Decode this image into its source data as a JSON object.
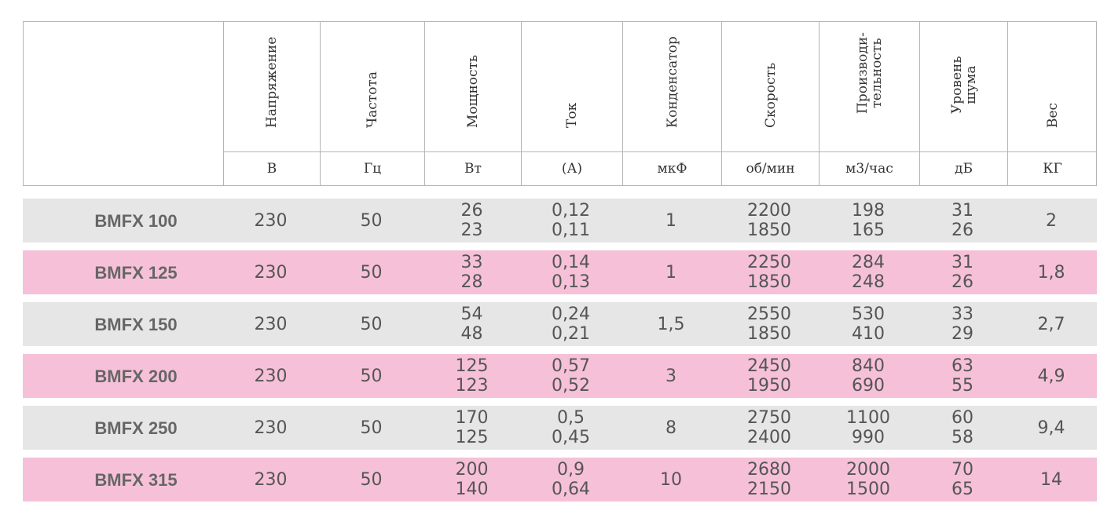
{
  "columns": [
    {
      "key": "voltage",
      "header": [
        "Напряжение"
      ],
      "unit": "В"
    },
    {
      "key": "frequency",
      "header": [
        "Частота"
      ],
      "unit": "Гц"
    },
    {
      "key": "power",
      "header": [
        "Мощность"
      ],
      "unit": "Вт"
    },
    {
      "key": "current",
      "header": [
        "Ток"
      ],
      "unit": "(А)"
    },
    {
      "key": "capacitor",
      "header": [
        "Конденсатор"
      ],
      "unit": "мкФ"
    },
    {
      "key": "speed",
      "header": [
        "Скорость"
      ],
      "unit": "об/мин"
    },
    {
      "key": "capacity",
      "header": [
        "Производи-",
        "тельность"
      ],
      "unit": "м3/час"
    },
    {
      "key": "noise",
      "header": [
        "Уровень",
        "шума"
      ],
      "unit": "дБ"
    },
    {
      "key": "weight",
      "header": [
        "Вес"
      ],
      "unit": "КГ"
    }
  ],
  "rows": [
    {
      "model": "BMFX 100",
      "voltage": "230",
      "frequency": "50",
      "power": [
        "26",
        "23"
      ],
      "current": [
        "0,12",
        "0,11"
      ],
      "capacitor": "1",
      "speed": [
        "2200",
        "1850"
      ],
      "capacity": [
        "198",
        "165"
      ],
      "noise": [
        "31",
        "26"
      ],
      "weight": "2",
      "style": "gray"
    },
    {
      "model": "BMFX 125",
      "voltage": "230",
      "frequency": "50",
      "power": [
        "33",
        "28"
      ],
      "current": [
        "0,14",
        "0,13"
      ],
      "capacitor": "1",
      "speed": [
        "2250",
        "1850"
      ],
      "capacity": [
        "284",
        "248"
      ],
      "noise": [
        "31",
        "26"
      ],
      "weight": "1,8",
      "style": "pink"
    },
    {
      "model": "BMFX 150",
      "voltage": "230",
      "frequency": "50",
      "power": [
        "54",
        "48"
      ],
      "current": [
        "0,24",
        "0,21"
      ],
      "capacitor": "1,5",
      "speed": [
        "2550",
        "1850"
      ],
      "capacity": [
        "530",
        "410"
      ],
      "noise": [
        "33",
        "29"
      ],
      "weight": "2,7",
      "style": "gray"
    },
    {
      "model": "BMFX 200",
      "voltage": "230",
      "frequency": "50",
      "power": [
        "125",
        "123"
      ],
      "current": [
        "0,57",
        "0,52"
      ],
      "capacitor": "3",
      "speed": [
        "2450",
        "1950"
      ],
      "capacity": [
        "840",
        "690"
      ],
      "noise": [
        "63",
        "55"
      ],
      "weight": "4,9",
      "style": "pink"
    },
    {
      "model": "BMFX 250",
      "voltage": "230",
      "frequency": "50",
      "power": [
        "170",
        "125"
      ],
      "current": [
        "0,5",
        "0,45"
      ],
      "capacitor": "8",
      "speed": [
        "2750",
        "2400"
      ],
      "capacity": [
        "1100",
        "990"
      ],
      "noise": [
        "60",
        "58"
      ],
      "weight": "9,4",
      "style": "gray"
    },
    {
      "model": "BMFX 315",
      "voltage": "230",
      "frequency": "50",
      "power": [
        "200",
        "140"
      ],
      "current": [
        "0,9",
        "0,64"
      ],
      "capacitor": "10",
      "speed": [
        "2680",
        "2150"
      ],
      "capacity": [
        "2000",
        "1500"
      ],
      "noise": [
        "70",
        "65"
      ],
      "weight": "14",
      "style": "pink"
    }
  ],
  "colors": {
    "gray_row": "#e6e6e6",
    "pink_row": "#f6c1d8",
    "border": "#b4b4b4"
  }
}
